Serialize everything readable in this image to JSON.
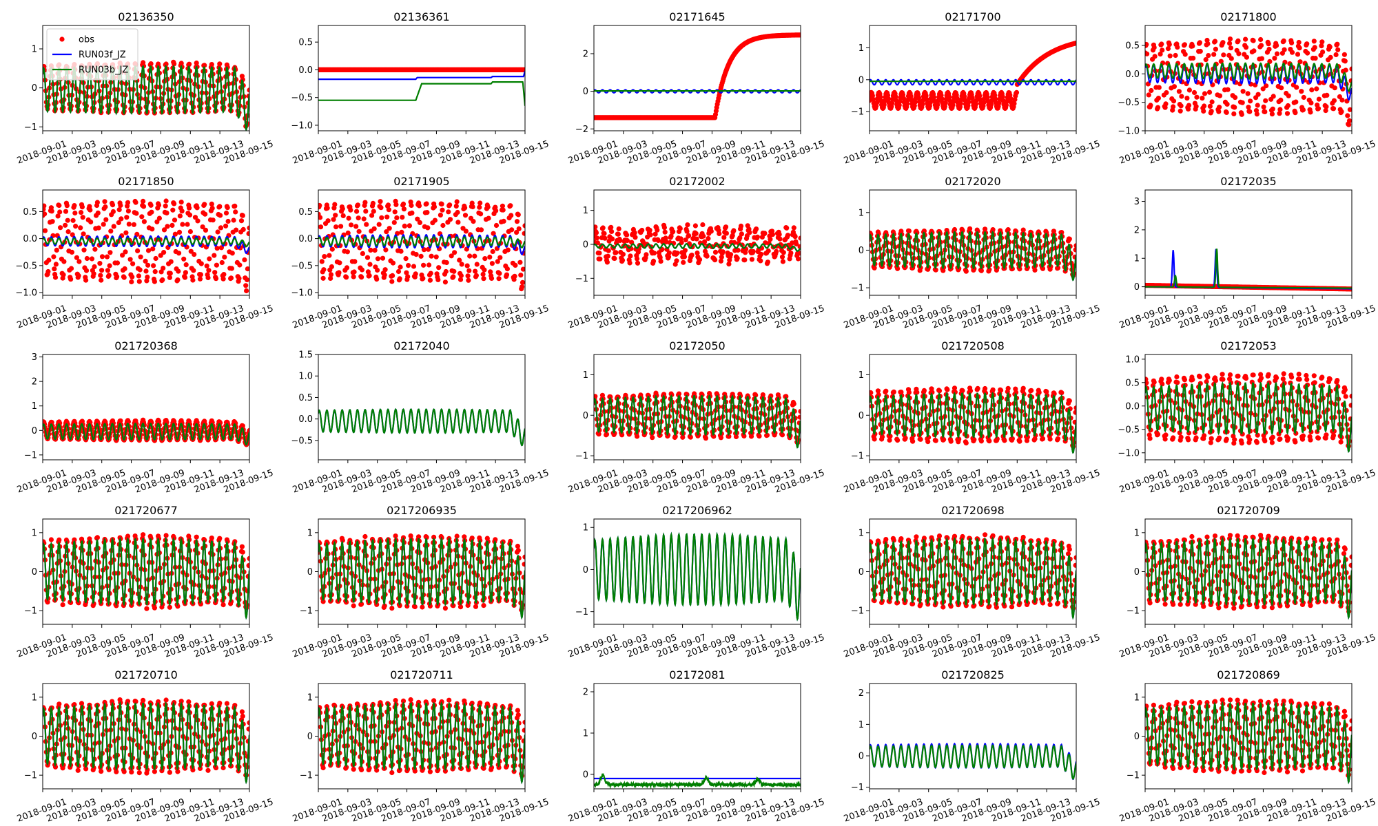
{
  "x_tick_labels": [
    "2018-09-01",
    "2018-09-03",
    "2018-09-05",
    "2018-09-07",
    "2018-09-09",
    "2018-09-11",
    "2018-09-13",
    "2018-09-15"
  ],
  "colors": {
    "obs": "#ff0000",
    "RUN03f_JZ": "#0000ff",
    "RUN03b_JZ": "#007f00"
  },
  "legend": [
    "obs",
    "RUN03f_JZ",
    "RUN03b_JZ"
  ],
  "chart_data": [
    {
      "type": "line",
      "title": "02136350",
      "xlim": [
        0,
        14
      ],
      "ylim": [
        -1.1,
        1.6
      ],
      "yticks": [
        -1,
        0,
        1
      ],
      "ytick_labels": [
        "−1",
        "0",
        "1"
      ],
      "obs": {
        "kind": "tidal",
        "mean": 0.0,
        "amp": 0.55,
        "trend": 0.15,
        "end_drop": -0.55
      },
      "f": {
        "kind": "tidal",
        "mean": -0.05,
        "amp": 0.55,
        "trend": 0.1,
        "end_drop": -0.6
      },
      "b": {
        "kind": "tidal",
        "mean": -0.05,
        "amp": 0.55,
        "trend": 0.1,
        "end_drop": -0.6
      },
      "legend": true
    },
    {
      "type": "line",
      "title": "02136361",
      "xlim": [
        0,
        14
      ],
      "ylim": [
        -1.1,
        0.8
      ],
      "yticks": [
        -1.0,
        -0.5,
        0.0,
        0.5
      ],
      "ytick_labels": [
        "−1.0",
        "−0.5",
        "0.0",
        "0.5"
      ],
      "obs": {
        "kind": "flat",
        "value": 0.0
      },
      "f": {
        "kind": "steps",
        "points": [
          [
            0,
            -0.17
          ],
          [
            6.6,
            -0.17
          ],
          [
            6.7,
            -0.14
          ],
          [
            11.7,
            -0.14
          ],
          [
            11.8,
            -0.12
          ],
          [
            13.9,
            -0.12
          ],
          [
            14,
            -0.02
          ]
        ]
      },
      "b": {
        "kind": "steps",
        "points": [
          [
            0,
            -0.55
          ],
          [
            6.6,
            -0.55
          ],
          [
            7.0,
            -0.25
          ],
          [
            11.7,
            -0.25
          ],
          [
            11.8,
            -0.22
          ],
          [
            13.85,
            -0.22
          ],
          [
            14,
            -0.65
          ]
        ]
      }
    },
    {
      "type": "line",
      "title": "02171645",
      "xlim": [
        0,
        14
      ],
      "ylim": [
        -2.1,
        3.5
      ],
      "yticks": [
        -2,
        0,
        2
      ],
      "ytick_labels": [
        "−2",
        "0",
        "2"
      ],
      "obs": {
        "kind": "rise",
        "flat": -1.4,
        "start": 8.2,
        "target": 3.0
      },
      "f": {
        "kind": "tidal",
        "mean": 0.0,
        "amp": 0.08,
        "trend": 0,
        "end_drop": 0
      },
      "b": {
        "kind": "flat",
        "value": 0.02
      }
    },
    {
      "type": "line",
      "title": "02171700",
      "xlim": [
        0,
        14
      ],
      "ylim": [
        -1.6,
        1.7
      ],
      "yticks": [
        -1,
        0,
        1
      ],
      "ytick_labels": [
        "−1",
        "0",
        "1"
      ],
      "obs": {
        "kind": "rise_tidal",
        "flat": -0.65,
        "amp": 0.25,
        "start": 10.0,
        "target": 1.4
      },
      "f": {
        "kind": "tidal",
        "mean": -0.08,
        "amp": 0.08,
        "trend": 0,
        "end_drop": 0
      },
      "b": {
        "kind": "flat",
        "value": -0.05
      }
    },
    {
      "type": "line",
      "title": "02171800",
      "xlim": [
        0,
        14
      ],
      "ylim": [
        -1.0,
        0.85
      ],
      "yticks": [
        -1.0,
        -0.5,
        0.0,
        0.5
      ],
      "ytick_labels": [
        "−1.0",
        "−0.5",
        "0.0",
        "0.5"
      ],
      "obs": {
        "kind": "tidal",
        "mean": -0.05,
        "amp": 0.55,
        "trend": 0.15,
        "end_drop": -0.4
      },
      "f": {
        "kind": "tidal",
        "mean": 0.0,
        "amp": 0.15,
        "trend": 0.15,
        "end_drop": -0.65
      },
      "b": {
        "kind": "tidal",
        "mean": 0.05,
        "amp": 0.12,
        "trend": 0.15,
        "end_drop": -0.5
      }
    },
    {
      "type": "line",
      "title": "02171850",
      "xlim": [
        0,
        14
      ],
      "ylim": [
        -1.05,
        0.9
      ],
      "yticks": [
        -1.0,
        -0.5,
        0.0,
        0.5
      ],
      "ytick_labels": [
        "−1.0",
        "−0.5",
        "0.0",
        "0.5"
      ],
      "obs": {
        "kind": "tidal",
        "mean": -0.05,
        "amp": 0.65,
        "trend": 0.1,
        "end_drop": -0.3
      },
      "f": {
        "kind": "tidal",
        "mean": -0.05,
        "amp": 0.08,
        "trend": 0.2,
        "end_drop": -0.3
      },
      "b": {
        "kind": "tidal",
        "mean": -0.05,
        "amp": 0.05,
        "trend": 0.15,
        "end_drop": -0.1
      }
    },
    {
      "type": "line",
      "title": "02171905",
      "xlim": [
        0,
        14
      ],
      "ylim": [
        -1.05,
        0.9
      ],
      "yticks": [
        -1.0,
        -0.5,
        0.0,
        0.5
      ],
      "ytick_labels": [
        "−1.0",
        "−0.5",
        "0.0",
        "0.5"
      ],
      "obs": {
        "kind": "tidal",
        "mean": -0.05,
        "amp": 0.65,
        "trend": 0.1,
        "end_drop": -0.3
      },
      "f": {
        "kind": "tidal",
        "mean": -0.05,
        "amp": 0.1,
        "trend": 0.2,
        "end_drop": -0.3
      },
      "b": {
        "kind": "tidal",
        "mean": -0.05,
        "amp": 0.07,
        "trend": 0.15,
        "end_drop": -0.1
      }
    },
    {
      "type": "line",
      "title": "02172002",
      "xlim": [
        0,
        14
      ],
      "ylim": [
        -1.5,
        1.6
      ],
      "yticks": [
        -1,
        0,
        1
      ],
      "ytick_labels": [
        "−1",
        "0",
        "1"
      ],
      "obs": {
        "kind": "noisy",
        "mean": 0.0,
        "amp": 0.55,
        "trend": 0.2,
        "end_drop": 0
      },
      "f": {
        "kind": "tidal",
        "mean": -0.05,
        "amp": 0.05,
        "trend": 0.3,
        "end_drop": -0.2
      },
      "b": {
        "kind": "tidal",
        "mean": -0.05,
        "amp": 0.05,
        "trend": 0.3,
        "end_drop": -0.2
      }
    },
    {
      "type": "line",
      "title": "02172020",
      "xlim": [
        0,
        14
      ],
      "ylim": [
        -1.2,
        1.6
      ],
      "yticks": [
        -1,
        0,
        1
      ],
      "ytick_labels": [
        "−1",
        "0",
        "1"
      ],
      "obs": {
        "kind": "tidal",
        "mean": 0.0,
        "amp": 0.45,
        "trend": 0.2,
        "end_drop": -0.3
      },
      "f": {
        "kind": "tidal",
        "mean": 0.0,
        "amp": 0.4,
        "trend": 0.2,
        "end_drop": -0.5
      },
      "b": {
        "kind": "tidal",
        "mean": 0.0,
        "amp": 0.4,
        "trend": 0.2,
        "end_drop": -0.5
      }
    },
    {
      "type": "line",
      "title": "02172035",
      "xlim": [
        0,
        14
      ],
      "ylim": [
        -0.3,
        3.4
      ],
      "yticks": [
        0,
        1,
        2,
        3
      ],
      "ytick_labels": [
        "0",
        "1",
        "2",
        "3"
      ],
      "obs": {
        "kind": "flat_slope",
        "start_v": 0.05,
        "end_v": -0.08
      },
      "f": {
        "kind": "spikes",
        "base": 0.0,
        "end_base": -0.07,
        "spikes": [
          [
            1.9,
            1.3
          ],
          [
            4.8,
            1.35
          ]
        ]
      },
      "b": {
        "kind": "spikes",
        "base": 0.0,
        "end_base": -0.05,
        "spikes": [
          [
            2.05,
            0.4
          ],
          [
            4.85,
            1.35
          ]
        ]
      }
    },
    {
      "type": "line",
      "title": "021720368",
      "xlim": [
        0,
        14
      ],
      "ylim": [
        -1.2,
        3.1
      ],
      "yticks": [
        -1,
        0,
        1,
        2,
        3
      ],
      "ytick_labels": [
        "−1",
        "0",
        "1",
        "2",
        "3"
      ],
      "obs": {
        "kind": "tidal",
        "mean": 0.0,
        "amp": 0.35,
        "trend": 0.15,
        "end_drop": -0.3
      },
      "f": {
        "kind": "tidal",
        "mean": -0.05,
        "amp": 0.3,
        "trend": 0.1,
        "end_drop": -0.3
      },
      "b": {
        "kind": "tidal",
        "mean": -0.05,
        "amp": 0.3,
        "trend": 0.1,
        "end_drop": -0.3
      }
    },
    {
      "type": "line",
      "title": "02172040",
      "xlim": [
        0,
        14
      ],
      "ylim": [
        -0.95,
        1.5
      ],
      "yticks": [
        -0.5,
        0.0,
        0.5,
        1.0,
        1.5
      ],
      "ytick_labels": [
        "−0.5",
        "0.0",
        "0.5",
        "1.0",
        "1.5"
      ],
      "obs": null,
      "f": {
        "kind": "tidal",
        "mean": -0.05,
        "amp": 0.25,
        "trend": 0.1,
        "end_drop": -0.4
      },
      "b": {
        "kind": "tidal",
        "mean": -0.05,
        "amp": 0.25,
        "trend": 0.1,
        "end_drop": -0.4
      }
    },
    {
      "type": "line",
      "title": "02172050",
      "xlim": [
        0,
        14
      ],
      "ylim": [
        -1.1,
        1.5
      ],
      "yticks": [
        -1,
        0,
        1
      ],
      "ytick_labels": [
        "−1",
        "0",
        "1"
      ],
      "obs": {
        "kind": "tidal",
        "mean": 0.0,
        "amp": 0.45,
        "trend": 0.2,
        "end_drop": -0.3
      },
      "f": {
        "kind": "tidal",
        "mean": 0.0,
        "amp": 0.4,
        "trend": 0.2,
        "end_drop": -0.5
      },
      "b": {
        "kind": "tidal",
        "mean": 0.0,
        "amp": 0.4,
        "trend": 0.2,
        "end_drop": -0.5
      }
    },
    {
      "type": "line",
      "title": "021720508",
      "xlim": [
        0,
        14
      ],
      "ylim": [
        -1.1,
        1.5
      ],
      "yticks": [
        -1,
        0,
        1
      ],
      "ytick_labels": [
        "−1",
        "0",
        "1"
      ],
      "obs": {
        "kind": "tidal",
        "mean": 0.0,
        "amp": 0.55,
        "trend": 0.2,
        "end_drop": -0.3
      },
      "f": {
        "kind": "tidal",
        "mean": 0.0,
        "amp": 0.45,
        "trend": 0.2,
        "end_drop": -0.6
      },
      "b": {
        "kind": "tidal",
        "mean": 0.0,
        "amp": 0.45,
        "trend": 0.2,
        "end_drop": -0.6
      }
    },
    {
      "type": "line",
      "title": "02172053",
      "xlim": [
        0,
        14
      ],
      "ylim": [
        -1.15,
        1.1
      ],
      "yticks": [
        -1.0,
        -0.5,
        0.0,
        0.5,
        1.0
      ],
      "ytick_labels": [
        "−1.0",
        "−0.5",
        "0.0",
        "0.5",
        "1.0"
      ],
      "obs": {
        "kind": "tidal",
        "mean": -0.05,
        "amp": 0.6,
        "trend": 0.2,
        "end_drop": -0.3
      },
      "f": {
        "kind": "tidal",
        "mean": -0.05,
        "amp": 0.45,
        "trend": 0.2,
        "end_drop": -0.6
      },
      "b": {
        "kind": "tidal",
        "mean": -0.05,
        "amp": 0.45,
        "trend": 0.2,
        "end_drop": -0.6
      }
    },
    {
      "type": "line",
      "title": "021720677",
      "xlim": [
        0,
        14
      ],
      "ylim": [
        -1.35,
        1.35
      ],
      "yticks": [
        -1,
        0,
        1
      ],
      "ytick_labels": [
        "−1",
        "0",
        "1"
      ],
      "obs": {
        "kind": "tidal",
        "mean": 0.0,
        "amp": 0.75,
        "trend": 0.2,
        "end_drop": -0.3
      },
      "f": {
        "kind": "tidal",
        "mean": 0.0,
        "amp": 0.7,
        "trend": 0.2,
        "end_drop": -0.6
      },
      "b": {
        "kind": "tidal",
        "mean": 0.0,
        "amp": 0.7,
        "trend": 0.2,
        "end_drop": -0.6
      }
    },
    {
      "type": "line",
      "title": "0217206935",
      "xlim": [
        0,
        14
      ],
      "ylim": [
        -1.35,
        1.35
      ],
      "yticks": [
        -1,
        0,
        1
      ],
      "ytick_labels": [
        "−1",
        "0",
        "1"
      ],
      "obs": {
        "kind": "tidal",
        "mean": 0.0,
        "amp": 0.75,
        "trend": 0.2,
        "end_drop": -0.3
      },
      "f": {
        "kind": "tidal",
        "mean": 0.0,
        "amp": 0.7,
        "trend": 0.2,
        "end_drop": -0.6
      },
      "b": {
        "kind": "tidal",
        "mean": 0.0,
        "amp": 0.7,
        "trend": 0.2,
        "end_drop": -0.6
      }
    },
    {
      "type": "line",
      "title": "0217206962",
      "xlim": [
        0,
        14
      ],
      "ylim": [
        -1.3,
        1.2
      ],
      "yticks": [
        -1,
        0,
        1
      ],
      "ytick_labels": [
        "−1",
        "0",
        "1"
      ],
      "obs": null,
      "f": {
        "kind": "tidal",
        "mean": 0.0,
        "amp": 0.7,
        "trend": 0.2,
        "end_drop": -0.6
      },
      "b": {
        "kind": "tidal",
        "mean": 0.0,
        "amp": 0.7,
        "trend": 0.2,
        "end_drop": -0.6
      }
    },
    {
      "type": "line",
      "title": "021720698",
      "xlim": [
        0,
        14
      ],
      "ylim": [
        -1.35,
        1.35
      ],
      "yticks": [
        -1,
        0,
        1
      ],
      "ytick_labels": [
        "−1",
        "0",
        "1"
      ],
      "obs": {
        "kind": "tidal",
        "mean": 0.0,
        "amp": 0.75,
        "trend": 0.2,
        "end_drop": -0.3
      },
      "f": {
        "kind": "tidal",
        "mean": 0.0,
        "amp": 0.7,
        "trend": 0.2,
        "end_drop": -0.6
      },
      "b": {
        "kind": "tidal",
        "mean": 0.0,
        "amp": 0.7,
        "trend": 0.2,
        "end_drop": -0.6
      }
    },
    {
      "type": "line",
      "title": "021720709",
      "xlim": [
        0,
        14
      ],
      "ylim": [
        -1.35,
        1.35
      ],
      "yticks": [
        -1,
        0,
        1
      ],
      "ytick_labels": [
        "−1",
        "0",
        "1"
      ],
      "obs": {
        "kind": "tidal",
        "mean": 0.0,
        "amp": 0.75,
        "trend": 0.2,
        "end_drop": -0.3
      },
      "f": {
        "kind": "tidal",
        "mean": 0.0,
        "amp": 0.7,
        "trend": 0.2,
        "end_drop": -0.6
      },
      "b": {
        "kind": "tidal",
        "mean": 0.0,
        "amp": 0.7,
        "trend": 0.2,
        "end_drop": -0.6
      }
    },
    {
      "type": "line",
      "title": "021720710",
      "xlim": [
        0,
        14
      ],
      "ylim": [
        -1.35,
        1.35
      ],
      "yticks": [
        -1,
        0,
        1
      ],
      "ytick_labels": [
        "−1",
        "0",
        "1"
      ],
      "obs": {
        "kind": "tidal",
        "mean": 0.0,
        "amp": 0.75,
        "trend": 0.2,
        "end_drop": -0.3
      },
      "f": {
        "kind": "tidal",
        "mean": 0.0,
        "amp": 0.7,
        "trend": 0.2,
        "end_drop": -0.6
      },
      "b": {
        "kind": "tidal",
        "mean": 0.0,
        "amp": 0.7,
        "trend": 0.2,
        "end_drop": -0.6
      }
    },
    {
      "type": "line",
      "title": "021720711",
      "xlim": [
        0,
        14
      ],
      "ylim": [
        -1.35,
        1.35
      ],
      "yticks": [
        -1,
        0,
        1
      ],
      "ytick_labels": [
        "−1",
        "0",
        "1"
      ],
      "obs": {
        "kind": "tidal",
        "mean": 0.0,
        "amp": 0.75,
        "trend": 0.2,
        "end_drop": -0.3
      },
      "f": {
        "kind": "tidal",
        "mean": 0.0,
        "amp": 0.7,
        "trend": 0.2,
        "end_drop": -0.6
      },
      "b": {
        "kind": "tidal",
        "mean": 0.0,
        "amp": 0.7,
        "trend": 0.2,
        "end_drop": -0.6
      }
    },
    {
      "type": "line",
      "title": "02172081",
      "xlim": [
        0,
        14
      ],
      "ylim": [
        -0.35,
        2.2
      ],
      "yticks": [
        0,
        1,
        2
      ],
      "ytick_labels": [
        "0",
        "1",
        "2"
      ],
      "obs": null,
      "f": {
        "kind": "flat",
        "value": -0.1
      },
      "b": {
        "kind": "noisy_low",
        "base": -0.25,
        "amp": 0.05,
        "bumps": [
          [
            0.6,
            0.05
          ],
          [
            7.6,
            -0.05
          ],
          [
            11.1,
            -0.1
          ]
        ]
      }
    },
    {
      "type": "line",
      "title": "021720825",
      "xlim": [
        0,
        14
      ],
      "ylim": [
        -1.05,
        2.3
      ],
      "yticks": [
        -1,
        0,
        1,
        2
      ],
      "ytick_labels": [
        "−1",
        "0",
        "1",
        "2"
      ],
      "obs": null,
      "f": {
        "kind": "tidal",
        "mean": 0.0,
        "amp": 0.35,
        "trend": 0.1,
        "end_drop": -0.5
      },
      "b": {
        "kind": "tidal",
        "mean": -0.02,
        "amp": 0.32,
        "trend": 0.1,
        "end_drop": -0.5
      }
    },
    {
      "type": "line",
      "title": "021720869",
      "xlim": [
        0,
        14
      ],
      "ylim": [
        -1.35,
        1.35
      ],
      "yticks": [
        -1,
        0,
        1
      ],
      "ytick_labels": [
        "−1",
        "0",
        "1"
      ],
      "obs": {
        "kind": "tidal",
        "mean": 0.0,
        "amp": 0.75,
        "trend": 0.2,
        "end_drop": -0.3
      },
      "f": {
        "kind": "tidal",
        "mean": 0.0,
        "amp": 0.7,
        "trend": 0.2,
        "end_drop": -0.6
      },
      "b": {
        "kind": "tidal",
        "mean": 0.0,
        "amp": 0.7,
        "trend": 0.2,
        "end_drop": -0.6
      }
    }
  ]
}
